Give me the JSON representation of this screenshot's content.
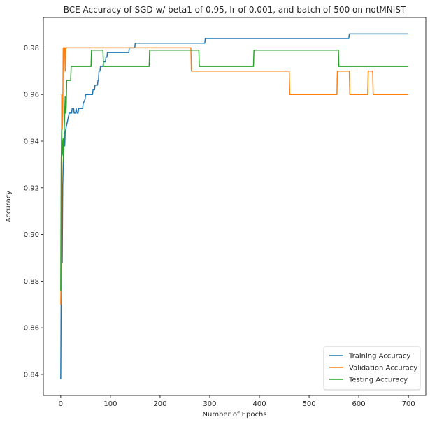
{
  "chart_data": {
    "type": "line",
    "title": "BCE Accuracy of SGD w/ beta1 of 0.95, lr of 0.001, and batch of 500 on notMNIST",
    "xlabel": "Number of Epochs",
    "ylabel": "Accuracy",
    "xlim": [
      -35,
      735
    ],
    "ylim": [
      0.831,
      0.993
    ],
    "xticks": [
      0,
      100,
      200,
      300,
      400,
      500,
      600,
      700
    ],
    "yticks": [
      0.84,
      0.86,
      0.88,
      0.9,
      0.92,
      0.94,
      0.96,
      0.98
    ],
    "ytick_labels": [
      "0.84",
      "0.86",
      "0.88",
      "0.90",
      "0.92",
      "0.94",
      "0.96",
      "0.98"
    ],
    "grid": false,
    "legend_position": "lower-right",
    "series": [
      {
        "name": "Training Accuracy",
        "color": "#1f77b4",
        "points": [
          [
            0,
            0.838
          ],
          [
            1,
            0.88
          ],
          [
            2,
            0.902
          ],
          [
            3,
            0.888
          ],
          [
            4,
            0.92
          ],
          [
            5,
            0.93
          ],
          [
            6,
            0.938
          ],
          [
            7,
            0.942
          ],
          [
            8,
            0.938
          ],
          [
            9,
            0.944
          ],
          [
            11,
            0.946
          ],
          [
            13,
            0.948
          ],
          [
            15,
            0.95
          ],
          [
            17,
            0.952
          ],
          [
            22,
            0.952
          ],
          [
            23,
            0.954
          ],
          [
            26,
            0.954
          ],
          [
            27,
            0.952
          ],
          [
            30,
            0.952
          ],
          [
            31,
            0.954
          ],
          [
            33,
            0.952
          ],
          [
            35,
            0.952
          ],
          [
            36,
            0.954
          ],
          [
            44,
            0.954
          ],
          [
            45,
            0.956
          ],
          [
            49,
            0.958
          ],
          [
            50,
            0.96
          ],
          [
            64,
            0.96
          ],
          [
            65,
            0.962
          ],
          [
            68,
            0.962
          ],
          [
            69,
            0.964
          ],
          [
            74,
            0.964
          ],
          [
            75,
            0.966
          ],
          [
            76,
            0.966
          ],
          [
            77,
            0.97
          ],
          [
            79,
            0.97
          ],
          [
            80,
            0.972
          ],
          [
            85,
            0.972
          ],
          [
            86,
            0.974
          ],
          [
            90,
            0.974
          ],
          [
            91,
            0.976
          ],
          [
            93,
            0.976
          ],
          [
            94,
            0.978
          ],
          [
            137,
            0.978
          ],
          [
            138,
            0.98
          ],
          [
            149,
            0.98
          ],
          [
            150,
            0.982
          ],
          [
            290,
            0.982
          ],
          [
            291,
            0.984
          ],
          [
            580,
            0.984
          ],
          [
            581,
            0.986
          ],
          [
            700,
            0.986
          ]
        ]
      },
      {
        "name": "Validation Accuracy",
        "color": "#ff7f0e",
        "points": [
          [
            0,
            0.87
          ],
          [
            1,
            0.885
          ],
          [
            2,
            0.96
          ],
          [
            3,
            0.945
          ],
          [
            4,
            0.952
          ],
          [
            5,
            0.98
          ],
          [
            8,
            0.98
          ],
          [
            9,
            0.97
          ],
          [
            10,
            0.98
          ],
          [
            262,
            0.98
          ],
          [
            263,
            0.97
          ],
          [
            460,
            0.97
          ],
          [
            461,
            0.96
          ],
          [
            556,
            0.96
          ],
          [
            557,
            0.97
          ],
          [
            581,
            0.97
          ],
          [
            582,
            0.96
          ],
          [
            618,
            0.96
          ],
          [
            619,
            0.97
          ],
          [
            628,
            0.97
          ],
          [
            629,
            0.96
          ],
          [
            700,
            0.96
          ]
        ]
      },
      {
        "name": "Testing Accuracy",
        "color": "#2ca02c",
        "points": [
          [
            0,
            0.876
          ],
          [
            1,
            0.931
          ],
          [
            2,
            0.945
          ],
          [
            3,
            0.934
          ],
          [
            4,
            0.938
          ],
          [
            5,
            0.941
          ],
          [
            6,
            0.931
          ],
          [
            7,
            0.945
          ],
          [
            8,
            0.952
          ],
          [
            9,
            0.959
          ],
          [
            10,
            0.952
          ],
          [
            11,
            0.955
          ],
          [
            12,
            0.966
          ],
          [
            20,
            0.966
          ],
          [
            21,
            0.972
          ],
          [
            61,
            0.972
          ],
          [
            62,
            0.979
          ],
          [
            85,
            0.979
          ],
          [
            86,
            0.972
          ],
          [
            178,
            0.972
          ],
          [
            179,
            0.979
          ],
          [
            278,
            0.979
          ],
          [
            279,
            0.972
          ],
          [
            388,
            0.972
          ],
          [
            389,
            0.979
          ],
          [
            559,
            0.979
          ],
          [
            560,
            0.972
          ],
          [
            700,
            0.972
          ]
        ]
      }
    ]
  }
}
